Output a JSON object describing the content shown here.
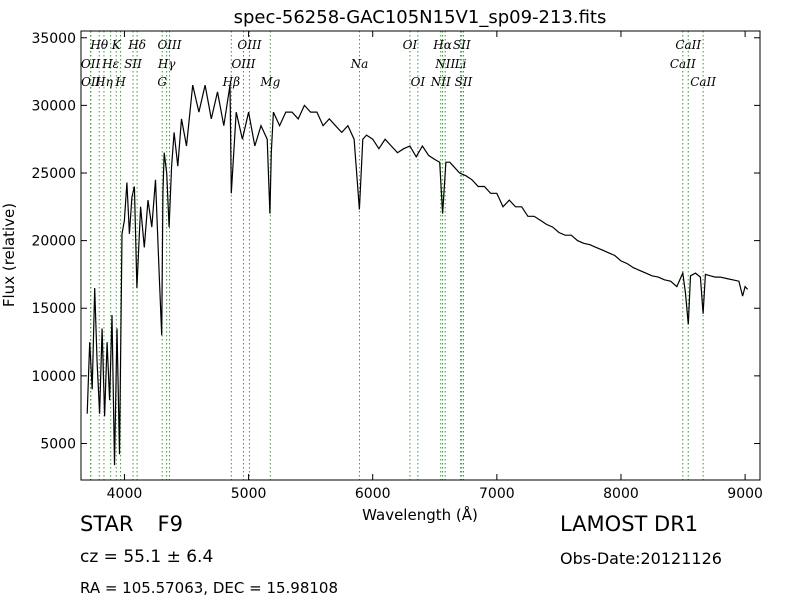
{
  "chart_data": {
    "type": "line",
    "title": "spec-56258-GAC105N15V1_sp09-213.fits",
    "xlabel": "Wavelength (Å)",
    "ylabel": "Flux (relative)",
    "xlim": [
      3650,
      9120
    ],
    "ylim": [
      2300,
      35500
    ],
    "xticks": [
      4000,
      5000,
      6000,
      7000,
      8000,
      9000
    ],
    "yticks": [
      5000,
      10000,
      15000,
      20000,
      25000,
      30000,
      35000
    ],
    "grid": false,
    "line_color": "#000000",
    "marker_color": "#2ca02c",
    "series": [
      {
        "x": [
          3700,
          3720,
          3740,
          3760,
          3780,
          3800,
          3820,
          3840,
          3860,
          3880,
          3900,
          3920,
          3940,
          3960,
          3980,
          4000,
          4020,
          4040,
          4060,
          4080,
          4100,
          4130,
          4160,
          4190,
          4220,
          4250,
          4280,
          4300,
          4310,
          4320,
          4340,
          4360,
          4380,
          4400,
          4430,
          4460,
          4500,
          4550,
          4600,
          4650,
          4700,
          4750,
          4800,
          4850,
          4861,
          4900,
          4950,
          5000,
          5050,
          5100,
          5150,
          5172,
          5183,
          5200,
          5250,
          5300,
          5350,
          5400,
          5450,
          5500,
          5550,
          5600,
          5650,
          5700,
          5750,
          5800,
          5850,
          5893,
          5920,
          5950,
          6000,
          6050,
          6100,
          6150,
          6200,
          6250,
          6300,
          6350,
          6400,
          6450,
          6500,
          6540,
          6563,
          6590,
          6620,
          6650,
          6700,
          6750,
          6800,
          6850,
          6900,
          6950,
          7000,
          7050,
          7100,
          7150,
          7200,
          7250,
          7300,
          7350,
          7400,
          7450,
          7500,
          7550,
          7600,
          7650,
          7700,
          7750,
          7800,
          7850,
          7900,
          7950,
          8000,
          8050,
          8100,
          8150,
          8200,
          8250,
          8300,
          8350,
          8400,
          8450,
          8498,
          8520,
          8542,
          8560,
          8600,
          8640,
          8662,
          8680,
          8720,
          8760,
          8800,
          8850,
          8900,
          8950,
          8980,
          9000,
          9020
        ],
        "y": [
          7200,
          12500,
          9000,
          16500,
          11000,
          7200,
          13500,
          7000,
          12500,
          8200,
          14500,
          3400,
          13500,
          4200,
          20500,
          21500,
          24300,
          20500,
          23200,
          24000,
          16500,
          22500,
          19500,
          23000,
          21000,
          24500,
          17500,
          13000,
          23500,
          26500,
          25000,
          21000,
          25500,
          28000,
          25500,
          29000,
          27000,
          31500,
          29500,
          31500,
          29000,
          31000,
          28500,
          31500,
          23500,
          29500,
          27500,
          29500,
          27000,
          28500,
          27500,
          22000,
          26500,
          29500,
          28500,
          29500,
          29500,
          29000,
          30000,
          29500,
          29500,
          28500,
          29000,
          28500,
          28000,
          28500,
          27500,
          22300,
          27500,
          27800,
          27500,
          26800,
          27500,
          27000,
          26500,
          26800,
          27000,
          26200,
          27000,
          26300,
          26000,
          25800,
          22000,
          25800,
          25800,
          25500,
          25000,
          24800,
          24500,
          24000,
          24000,
          23500,
          23500,
          22500,
          23000,
          22500,
          22500,
          21800,
          21800,
          21500,
          21200,
          21000,
          20600,
          20400,
          20400,
          20000,
          19800,
          19700,
          19500,
          19300,
          19100,
          18900,
          18500,
          18300,
          18000,
          17800,
          17600,
          17400,
          17300,
          17100,
          17000,
          16600,
          17600,
          16100,
          13800,
          17400,
          17600,
          17300,
          14600,
          17500,
          17400,
          17300,
          17300,
          17200,
          17100,
          17000,
          15900,
          16600,
          16400
        ]
      }
    ],
    "lines": [
      {
        "label": "Hθ",
        "x": 3797,
        "row": 0
      },
      {
        "label": "K",
        "x": 3934,
        "row": 0
      },
      {
        "label": "Hδ",
        "x": 4102,
        "row": 0
      },
      {
        "label": "OIII",
        "x": 4363,
        "row": 0
      },
      {
        "label": "OIII",
        "x": 5007,
        "row": 0
      },
      {
        "label": "OI",
        "x": 6300,
        "row": 0
      },
      {
        "label": "Hα",
        "x": 6563,
        "row": 0
      },
      {
        "label": "SII",
        "x": 6717,
        "row": 0
      },
      {
        "label": "CaII",
        "x": 8542,
        "row": 0
      },
      {
        "label": "OII",
        "x": 3727,
        "row": 1
      },
      {
        "label": "Hε",
        "x": 3889,
        "row": 1
      },
      {
        "label": "SII",
        "x": 4069,
        "row": 1
      },
      {
        "label": "Hγ",
        "x": 4340,
        "row": 1
      },
      {
        "label": "OIII",
        "x": 4959,
        "row": 1
      },
      {
        "label": "Na",
        "x": 5893,
        "row": 1
      },
      {
        "label": "NII",
        "x": 6584,
        "row": 1
      },
      {
        "label": "Li",
        "x": 6708,
        "row": 1
      },
      {
        "label": "CaII",
        "x": 8498,
        "row": 1
      },
      {
        "label": "OII",
        "x": 3729,
        "row": 2
      },
      {
        "label": "Hη",
        "x": 3835,
        "row": 2
      },
      {
        "label": "H",
        "x": 3969,
        "row": 2
      },
      {
        "label": "G",
        "x": 4304,
        "row": 2
      },
      {
        "label": "Hβ",
        "x": 4861,
        "row": 2
      },
      {
        "label": "Mg",
        "x": 5175,
        "row": 2
      },
      {
        "label": "OI",
        "x": 6364,
        "row": 2
      },
      {
        "label": "NII",
        "x": 6548,
        "row": 2
      },
      {
        "label": "SII",
        "x": 6731,
        "row": 2
      },
      {
        "label": "CaII",
        "x": 8662,
        "row": 2
      }
    ]
  },
  "info": {
    "object_class": "STAR",
    "subclass": "F9",
    "cz": "cz = 55.1  ± 6.4",
    "radec": "RA = 105.57063, DEC = 15.98108",
    "survey": "LAMOST DR1",
    "obs_date": "Obs-Date:20121126"
  }
}
